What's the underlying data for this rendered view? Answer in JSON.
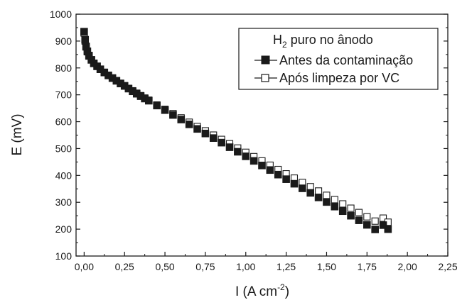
{
  "chart_data": {
    "type": "scatter",
    "xlabel": "I (A cm",
    "xlabel_sup": "-2",
    "xlabel_close": ")",
    "ylabel": "E (mV)",
    "xlim": [
      -0.05,
      2.25
    ],
    "ylim": [
      100,
      1000
    ],
    "x_ticks": [
      0,
      0.25,
      0.5,
      0.75,
      1.0,
      1.25,
      1.5,
      1.75,
      2.0,
      2.25
    ],
    "x_tick_labels": [
      "0,00",
      "0,25",
      "0,50",
      "0,75",
      "1,00",
      "1,25",
      "1,50",
      "1,75",
      "2,00",
      "2,25"
    ],
    "y_ticks": [
      100,
      200,
      300,
      400,
      500,
      600,
      700,
      800,
      900,
      1000
    ],
    "y_tick_labels": [
      "100",
      "200",
      "300",
      "400",
      "500",
      "600",
      "700",
      "800",
      "900",
      "1000"
    ],
    "grid": false,
    "legend": {
      "position": "top-right",
      "title_main": "H",
      "title_sub": "2",
      "title_rest": " puro no ânodo"
    },
    "series": [
      {
        "name": "Antes da contaminação",
        "marker": "filled-square",
        "color": "#1a1a1a",
        "x": [
          0.0,
          0.006,
          0.012,
          0.02,
          0.03,
          0.045,
          0.06,
          0.08,
          0.1,
          0.125,
          0.15,
          0.175,
          0.2,
          0.225,
          0.25,
          0.275,
          0.3,
          0.325,
          0.35,
          0.375,
          0.4,
          0.45,
          0.5,
          0.55,
          0.6,
          0.65,
          0.7,
          0.75,
          0.8,
          0.85,
          0.9,
          0.95,
          1.0,
          1.05,
          1.1,
          1.15,
          1.2,
          1.25,
          1.3,
          1.35,
          1.4,
          1.45,
          1.5,
          1.55,
          1.6,
          1.65,
          1.7,
          1.75,
          1.8,
          1.85,
          1.88
        ],
        "y": [
          935,
          905,
          880,
          862,
          846,
          830,
          817,
          806,
          795,
          783,
          772,
          762,
          752,
          742,
          733,
          723,
          713,
          704,
          695,
          686,
          678,
          660,
          643,
          625,
          608,
          590,
          573,
          556,
          539,
          522,
          505,
          488,
          471,
          454,
          437,
          420,
          403,
          386,
          369,
          352,
          335,
          318,
          301,
          284,
          267,
          250,
          233,
          216,
          199,
          215,
          200
        ]
      },
      {
        "name": "Após limpeza por VC",
        "marker": "open-square",
        "color": "#1a1a1a",
        "x": [
          0.0,
          0.006,
          0.012,
          0.02,
          0.03,
          0.045,
          0.06,
          0.08,
          0.1,
          0.125,
          0.15,
          0.175,
          0.2,
          0.225,
          0.25,
          0.275,
          0.3,
          0.325,
          0.35,
          0.375,
          0.4,
          0.45,
          0.5,
          0.55,
          0.6,
          0.65,
          0.7,
          0.75,
          0.8,
          0.85,
          0.9,
          0.95,
          1.0,
          1.05,
          1.1,
          1.15,
          1.2,
          1.25,
          1.3,
          1.35,
          1.4,
          1.45,
          1.5,
          1.55,
          1.6,
          1.65,
          1.7,
          1.75,
          1.8,
          1.85,
          1.88
        ],
        "y": [
          930,
          900,
          878,
          860,
          844,
          830,
          817,
          806,
          795,
          784,
          773,
          763,
          753,
          743,
          734,
          724,
          715,
          706,
          697,
          688,
          680,
          662,
          646,
          630,
          614,
          598,
          582,
          566,
          550,
          534,
          518,
          502,
          486,
          470,
          454,
          438,
          422,
          406,
          390,
          374,
          358,
          342,
          326,
          310,
          294,
          278,
          262,
          246,
          230,
          241,
          226
        ]
      }
    ]
  }
}
